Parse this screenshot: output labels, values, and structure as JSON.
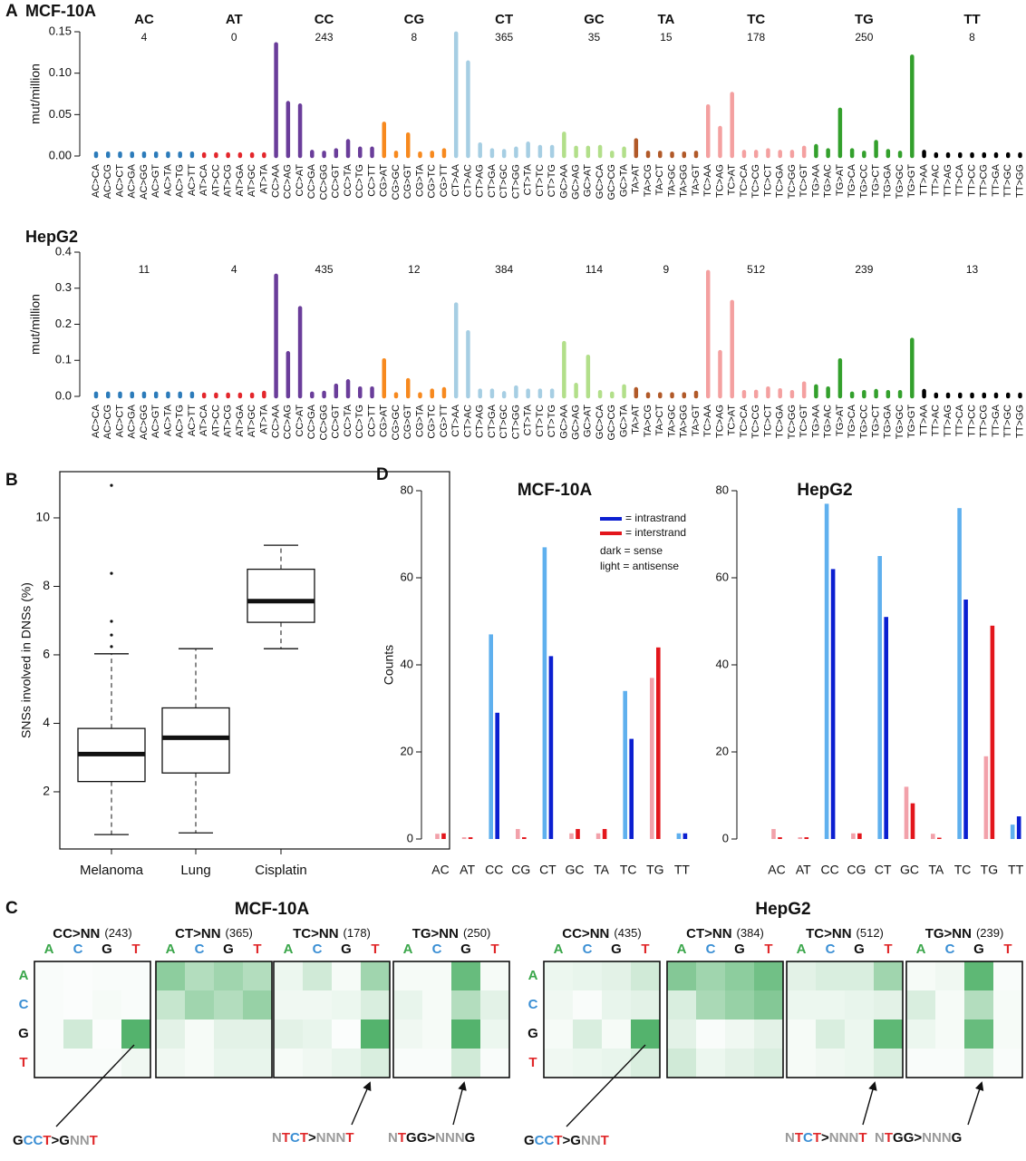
{
  "chart_data": [
    {
      "type": "bar",
      "panel": "A",
      "title": "MCF-10A",
      "ylabel": "mut/million",
      "ylim": [
        0,
        0.15
      ],
      "yticks": [
        {
          "value": 0,
          "label": "0.00"
        },
        0.05,
        {
          "value": 0.1,
          "label": "0.10"
        },
        0.15
      ],
      "groups": [
        {
          "name": "AC",
          "color": "#2b7bba",
          "count": 4,
          "categories": [
            "AC>CA",
            "AC>CG",
            "AC>CT",
            "AC>GA",
            "AC>GG",
            "AC>GT",
            "AC>TA",
            "AC>TG",
            "AC>TT"
          ],
          "values": [
            0.003,
            0.003,
            0.003,
            0.003,
            0.003,
            0.003,
            0.003,
            0.003,
            0.003
          ]
        },
        {
          "name": "AT",
          "color": "#e3262b",
          "count": 0,
          "categories": [
            "AT>CA",
            "AT>CC",
            "AT>CG",
            "AT>GA",
            "AT>GC",
            "AT>TA"
          ],
          "values": [
            0.002,
            0.002,
            0.002,
            0.002,
            0.002,
            0.002
          ]
        },
        {
          "name": "CC",
          "color": "#6a3d9a",
          "count": 243,
          "categories": [
            "CC>AA",
            "CC>AG",
            "CC>AT",
            "CC>GA",
            "CC>GG",
            "CC>GT",
            "CC>TA",
            "CC>TG",
            "CC>TT"
          ],
          "values": [
            0.135,
            0.064,
            0.061,
            0.005,
            0.004,
            0.007,
            0.018,
            0.009,
            0.009
          ]
        },
        {
          "name": "CG",
          "color": "#f7891e",
          "count": 8,
          "categories": [
            "CG>AT",
            "CG>GC",
            "CG>GT",
            "CG>TA",
            "CG>TC",
            "CG>TT"
          ],
          "values": [
            0.039,
            0.004,
            0.026,
            0.003,
            0.004,
            0.007
          ]
        },
        {
          "name": "CT",
          "color": "#a6cee3",
          "count": 365,
          "categories": [
            "CT>AA",
            "CT>AC",
            "CT>AG",
            "CT>GA",
            "CT>GC",
            "CT>GG",
            "CT>TA",
            "CT>TC",
            "CT>TG"
          ],
          "values": [
            0.148,
            0.113,
            0.014,
            0.007,
            0.006,
            0.009,
            0.015,
            0.011,
            0.011
          ]
        },
        {
          "name": "GC",
          "color": "#b2df8a",
          "count": 35,
          "categories": [
            "GC>AA",
            "GC>AG",
            "GC>AT",
            "GC>CA",
            "GC>CG",
            "GC>TA"
          ],
          "values": [
            0.027,
            0.01,
            0.01,
            0.011,
            0.004,
            0.009
          ]
        },
        {
          "name": "TA",
          "color": "#b15928",
          "count": 15,
          "categories": [
            "TA>AT",
            "TA>CG",
            "TA>CT",
            "TA>GC",
            "TA>GG",
            "TA>GT"
          ],
          "values": [
            0.019,
            0.004,
            0.004,
            0.003,
            0.003,
            0.004
          ]
        },
        {
          "name": "TC",
          "color": "#f4a0a0",
          "count": 178,
          "categories": [
            "TC>AA",
            "TC>AG",
            "TC>AT",
            "TC>CA",
            "TC>CG",
            "TC>CT",
            "TC>GA",
            "TC>GG",
            "TC>GT"
          ],
          "values": [
            0.06,
            0.034,
            0.075,
            0.005,
            0.005,
            0.007,
            0.005,
            0.005,
            0.01
          ]
        },
        {
          "name": "TG",
          "color": "#33a02c",
          "count": 250,
          "categories": [
            "TG>AA",
            "TG>AC",
            "TG>AT",
            "TG>CA",
            "TG>CC",
            "TG>CT",
            "TG>GA",
            "TG>GC",
            "TG>GT"
          ],
          "values": [
            0.012,
            0.007,
            0.056,
            0.007,
            0.004,
            0.017,
            0.006,
            0.004,
            0.12
          ]
        },
        {
          "name": "TT",
          "color": "#000000",
          "count": 8,
          "categories": [
            "TT>AA",
            "TT>AC",
            "TT>AG",
            "TT>CA",
            "TT>CC",
            "TT>CG",
            "TT>GA",
            "TT>GC",
            "TT>GG"
          ],
          "values": [
            0.005,
            0.002,
            0.002,
            0.002,
            0.002,
            0.002,
            0.002,
            0.002,
            0.002
          ]
        }
      ]
    },
    {
      "type": "bar",
      "title": "HepG2",
      "ylabel": "mut/million",
      "ylim": [
        0,
        0.4
      ],
      "yticks": [
        {
          "value": 0,
          "label": "0.0"
        },
        0.1,
        0.2,
        0.3,
        0.4
      ],
      "groups": [
        {
          "count": 11,
          "values": [
            0.008,
            0.008,
            0.008,
            0.008,
            0.008,
            0.008,
            0.008,
            0.008,
            0.008
          ]
        },
        {
          "count": 4,
          "values": [
            0.005,
            0.005,
            0.005,
            0.005,
            0.005,
            0.01
          ]
        },
        {
          "count": 435,
          "values": [
            0.335,
            0.12,
            0.245,
            0.008,
            0.01,
            0.03,
            0.042,
            0.022,
            0.022
          ]
        },
        {
          "count": 12,
          "values": [
            0.1,
            0.006,
            0.045,
            0.006,
            0.016,
            0.02
          ]
        },
        {
          "count": 384,
          "values": [
            0.255,
            0.178,
            0.016,
            0.016,
            0.009,
            0.025,
            0.016,
            0.016,
            0.016
          ]
        },
        {
          "count": 114,
          "values": [
            0.148,
            0.032,
            0.11,
            0.012,
            0.008,
            0.028
          ]
        },
        {
          "count": 9,
          "values": [
            0.02,
            0.006,
            0.006,
            0.006,
            0.006,
            0.01
          ]
        },
        {
          "count": 512,
          "values": [
            0.345,
            0.123,
            0.262,
            0.012,
            0.013,
            0.022,
            0.017,
            0.012,
            0.036
          ]
        },
        {
          "count": 239,
          "values": [
            0.028,
            0.022,
            0.1,
            0.008,
            0.012,
            0.015,
            0.012,
            0.012,
            0.157
          ]
        },
        {
          "count": 13,
          "values": [
            0.015,
            0.005,
            0.005,
            0.005,
            0.005,
            0.005,
            0.005,
            0.005,
            0.005
          ]
        }
      ]
    },
    {
      "type": "box",
      "panel": "B",
      "ylabel": "SNSs involved in DNSs (%)",
      "ylim": [
        0.33,
        11.35
      ],
      "yticks": [
        2,
        4,
        6,
        8,
        10
      ],
      "categories": [
        "Melanoma",
        "Lung",
        "Cisplatin"
      ],
      "boxes": [
        {
          "whisker_low": 0.75,
          "q1": 2.3,
          "median": 3.1,
          "q3": 3.85,
          "whisker_high": 6.03,
          "outliers": [
            6.24,
            6.58,
            6.98,
            8.38,
            10.95
          ]
        },
        {
          "whisker_low": 0.8,
          "q1": 2.55,
          "median": 3.58,
          "q3": 4.45,
          "whisker_high": 6.18,
          "outliers": []
        },
        {
          "whisker_low": 6.18,
          "q1": 6.95,
          "median": 7.57,
          "q3": 8.5,
          "whisker_high": 9.2,
          "outliers": []
        }
      ]
    },
    {
      "type": "grouped_bar",
      "panel": "D",
      "title": "MCF-10A",
      "ylabel": "Counts",
      "ylim": [
        0,
        80
      ],
      "yticks": [
        0,
        20,
        40,
        60,
        80
      ],
      "categories": [
        "AC",
        "AT",
        "CC",
        "CG",
        "CT",
        "GC",
        "TA",
        "TC",
        "TG",
        "TT"
      ],
      "legend": [
        {
          "label": "= intrastrand",
          "color": "#0b1fd1"
        },
        {
          "label": "= interstrand",
          "color": "#e3161c"
        }
      ],
      "legend_notes": [
        "dark = sense",
        "light = antisense"
      ],
      "series": [
        {
          "color": "#5fb0ee",
          "values": [
            null,
            null,
            47,
            null,
            67,
            null,
            null,
            34,
            null,
            1.3
          ]
        },
        {
          "color": "#0b1fd1",
          "values": [
            null,
            null,
            29,
            null,
            42,
            null,
            null,
            23,
            null,
            1.3
          ]
        },
        {
          "color": "#f2a1aa",
          "values": [
            1.2,
            0.4,
            null,
            2.3,
            null,
            1.3,
            1.3,
            null,
            37,
            null
          ]
        },
        {
          "color": "#e3161c",
          "values": [
            1.3,
            0.4,
            null,
            0.4,
            null,
            2.3,
            2.3,
            null,
            44,
            null
          ]
        }
      ]
    },
    {
      "type": "grouped_bar",
      "title": "HepG2",
      "ylim": [
        0,
        80
      ],
      "yticks": [
        0,
        20,
        40,
        60,
        80
      ],
      "series": [
        {
          "color": "#5fb0ee",
          "values": [
            null,
            null,
            77,
            null,
            65,
            null,
            null,
            76,
            null,
            3.3
          ]
        },
        {
          "color": "#0b1fd1",
          "values": [
            null,
            null,
            62,
            null,
            51,
            null,
            null,
            55,
            null,
            5.2
          ]
        },
        {
          "color": "#f2a1aa",
          "values": [
            2.3,
            0.4,
            null,
            1.3,
            null,
            12,
            1.2,
            null,
            19,
            null
          ]
        },
        {
          "color": "#e3161c",
          "values": [
            0.4,
            0.4,
            null,
            1.3,
            null,
            8.2,
            0.3,
            null,
            49,
            null
          ]
        }
      ]
    },
    {
      "type": "heatmap",
      "panel": "C",
      "title": "MCF-10A",
      "color": "#41ab5d",
      "vlim": [
        0,
        100
      ],
      "rows": [
        "A",
        "C",
        "G",
        "T"
      ],
      "columns": [
        "A",
        "C",
        "G",
        "T"
      ],
      "letter_colors": {
        "A": "#3aa64a",
        "C": "#3b8fd4",
        "G": "#111111",
        "T": "#e0282a",
        "N": "#9a9a9a",
        ">": "#111111"
      },
      "panels": [
        {
          "title": "CC>NN",
          "count": "(243)",
          "annotation": "GCCT>GNNT",
          "values": [
            [
              3,
              2,
              3,
              3
            ],
            [
              3,
              2,
              5,
              3
            ],
            [
              3,
              25,
              2,
              90
            ],
            [
              3,
              3,
              3,
              8
            ]
          ]
        },
        {
          "title": "CT>NN",
          "count": "(365)",
          "values": [
            [
              60,
              40,
              50,
              40
            ],
            [
              30,
              50,
              40,
              55
            ],
            [
              15,
              5,
              15,
              15
            ],
            [
              8,
              5,
              12,
              12
            ]
          ]
        },
        {
          "title": "TC>NN",
          "count": "(178)",
          "annotation": "NTCT>NNNT",
          "values": [
            [
              10,
              25,
              5,
              50
            ],
            [
              8,
              8,
              10,
              20
            ],
            [
              15,
              12,
              2,
              90
            ],
            [
              5,
              8,
              12,
              20
            ]
          ]
        },
        {
          "title": "TG>NN",
          "count": "(250)",
          "annotation": "NTGG>NNNG",
          "values": [
            [
              5,
              5,
              80,
              5
            ],
            [
              12,
              5,
              40,
              15
            ],
            [
              8,
              5,
              90,
              10
            ],
            [
              3,
              3,
              25,
              3
            ]
          ]
        }
      ]
    },
    {
      "type": "heatmap",
      "title": "HepG2",
      "color": "#41ab5d",
      "vlim": [
        0,
        100
      ],
      "rows": [
        "A",
        "C",
        "G",
        "T"
      ],
      "columns": [
        "A",
        "C",
        "G",
        "T"
      ],
      "letter_colors": {
        "A": "#3aa64a",
        "C": "#3b8fd4",
        "G": "#111111",
        "T": "#e0282a",
        "N": "#9a9a9a",
        ">": "#111111"
      },
      "panels": [
        {
          "title": "CC>NN",
          "count": "(435)",
          "annotation": "GCCT>GNNT",
          "values": [
            [
              10,
              12,
              15,
              25
            ],
            [
              8,
              3,
              12,
              15
            ],
            [
              5,
              20,
              5,
              90
            ],
            [
              8,
              10,
              12,
              20
            ]
          ]
        },
        {
          "title": "CT>NN",
          "count": "(384)",
          "values": [
            [
              65,
              50,
              60,
              75
            ],
            [
              20,
              45,
              55,
              65
            ],
            [
              15,
              3,
              8,
              15
            ],
            [
              25,
              10,
              15,
              20
            ]
          ]
        },
        {
          "title": "TC>NN",
          "count": "(512)",
          "annotation": "NTCT>NNNT",
          "values": [
            [
              15,
              20,
              20,
              50
            ],
            [
              10,
              10,
              12,
              15
            ],
            [
              5,
              20,
              10,
              85
            ],
            [
              5,
              8,
              10,
              20
            ]
          ]
        },
        {
          "title": "TG>NN",
          "count": "(239)",
          "annotation": "NTGG>NNNG",
          "values": [
            [
              5,
              8,
              85,
              3
            ],
            [
              20,
              5,
              40,
              5
            ],
            [
              10,
              5,
              80,
              5
            ],
            [
              3,
              3,
              20,
              3
            ]
          ]
        }
      ]
    }
  ]
}
